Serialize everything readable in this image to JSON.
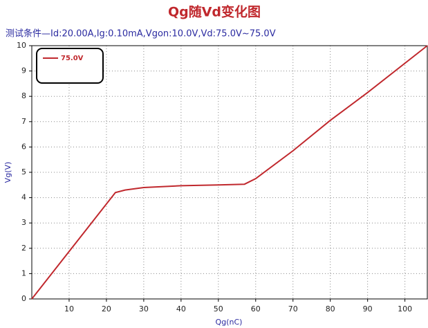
{
  "chart_data": {
    "type": "line",
    "title": "Qg随Vd变化图",
    "subtitle": "测试条件—Id:20.00A,Ig:0.10mA,Vgon:10.0V,Vd:75.0V~75.0V",
    "x_label": "Qg(nC)",
    "y_label": "Vg(V)",
    "x": [
      0,
      22.4,
      25,
      30,
      40,
      50,
      57,
      60,
      70,
      80,
      90,
      106
    ],
    "series": [
      {
        "name": "75.0V",
        "color": "#c0282d",
        "values": [
          0,
          4.2,
          4.3,
          4.4,
          4.47,
          4.5,
          4.53,
          4.75,
          5.85,
          7.05,
          8.15,
          10
        ]
      }
    ],
    "xlim": [
      0,
      106
    ],
    "xticks": [
      10,
      20,
      30,
      40,
      50,
      60,
      70,
      80,
      90,
      100
    ],
    "ylim": [
      0,
      10
    ],
    "yticks": [
      0,
      1,
      2,
      3,
      4,
      5,
      6,
      7,
      8,
      9,
      10
    ],
    "grid": true,
    "legend": "top-left"
  }
}
